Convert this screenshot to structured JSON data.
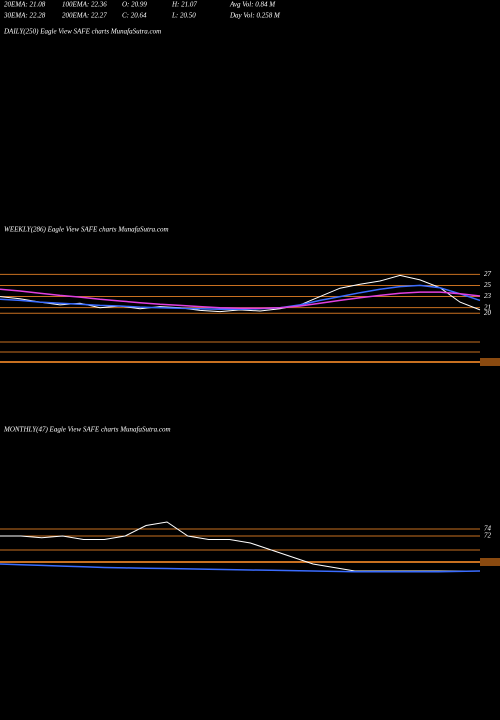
{
  "header": {
    "row1": [
      "20EMA: 21.08",
      "100EMA: 22.36",
      "O: 20.99",
      "H: 21.07",
      "Avg Vol: 0.84  M"
    ],
    "row2": [
      "30EMA: 22.28",
      "200EMA: 22.27",
      "C: 20.64",
      "L: 20.50",
      "Day Vol: 0.258 M"
    ],
    "daily_label": "DAILY(250) Eagle   View  SAFE charts MunafaSutra.com"
  },
  "chart_data": [
    {
      "type": "line",
      "title": "WEEKLY(286) Eagle   View  SAFE charts MunafaSutra.com",
      "ylim": [
        15,
        33
      ],
      "yticks": [
        27,
        25,
        23,
        21,
        20
      ],
      "grid": true,
      "series": [
        {
          "name": "Price",
          "color": "#ffffff",
          "values": [
            23,
            22.6,
            22,
            21.5,
            21.8,
            21,
            21.3,
            20.8,
            21.2,
            21,
            20.5,
            20.3,
            20.6,
            20.4,
            20.8,
            21.5,
            23,
            24.5,
            25.2,
            25.8,
            26.8,
            26,
            24.6,
            22,
            20.6
          ]
        },
        {
          "name": "EMA",
          "color": "#3a6cff",
          "values": [
            22.5,
            22.3,
            22,
            21.8,
            21.6,
            21.4,
            21.3,
            21.1,
            21,
            20.9,
            20.8,
            20.7,
            20.7,
            20.8,
            21,
            21.5,
            22.3,
            23,
            23.7,
            24.3,
            24.8,
            25,
            24.6,
            23.5,
            22.3
          ]
        },
        {
          "name": "Long EMA",
          "color": "#e040e0",
          "values": [
            24.3,
            24,
            23.6,
            23.2,
            22.9,
            22.5,
            22.2,
            21.9,
            21.6,
            21.4,
            21.2,
            21,
            20.9,
            20.9,
            21,
            21.3,
            21.8,
            22.3,
            22.8,
            23.2,
            23.6,
            23.8,
            23.8,
            23.5,
            23.1
          ]
        }
      ]
    },
    {
      "type": "line",
      "title": "MONTHLY(47) Eagle   View  SAFE charts MunafaSutra.com",
      "ylim": [
        48,
        100
      ],
      "yticks": [
        74,
        72
      ],
      "grid": true,
      "series": [
        {
          "name": "Price",
          "color": "#ffffff",
          "values": [
            72,
            72,
            71.5,
            72,
            71,
            71,
            72,
            75,
            76,
            72,
            71,
            71,
            70,
            68,
            66,
            64,
            63,
            62,
            62,
            62,
            62,
            62,
            62,
            62
          ]
        },
        {
          "name": "EMA",
          "color": "#3a6cff",
          "values": [
            64,
            63.8,
            63.6,
            63.4,
            63.2,
            63,
            62.9,
            62.8,
            62.7,
            62.6,
            62.5,
            62.4,
            62.3,
            62.2,
            62.1,
            62,
            61.9,
            61.8,
            61.8,
            61.8,
            61.8,
            61.8,
            61.9,
            62
          ]
        }
      ]
    }
  ]
}
